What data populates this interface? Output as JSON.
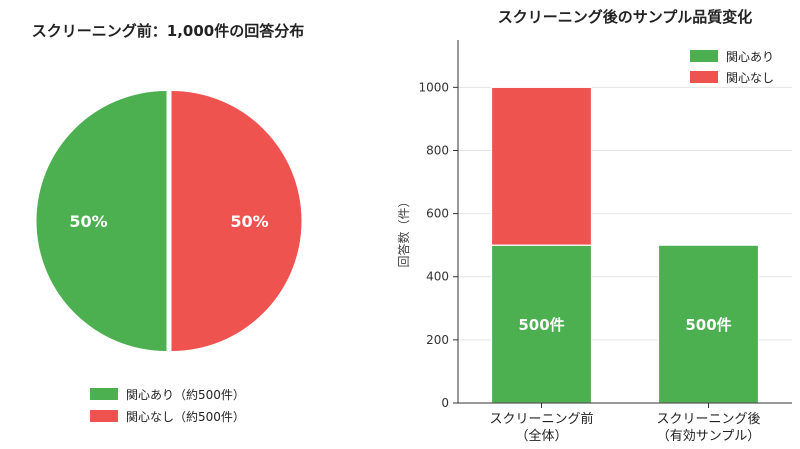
{
  "chart_data": [
    {
      "type": "pie",
      "title": "スクリーニング前：1,000件の回答分布",
      "slices": [
        {
          "label": "関心あり",
          "value": 50,
          "value_label": "50%",
          "legend": "関心あり（約500件）",
          "color": "#4caf50"
        },
        {
          "label": "関心なし",
          "value": 50,
          "value_label": "50%",
          "legend": "関心なし（約500件）",
          "color": "#ef5350"
        }
      ],
      "legend_position": "bottom"
    },
    {
      "type": "bar",
      "stacked": true,
      "title": "スクリーニング後のサンプル品質変化",
      "categories": [
        "スクリーニング前\n（全体）",
        "スクリーニング後\n（有効サンプル）"
      ],
      "series": [
        {
          "name": "関心あり",
          "values": [
            500,
            500
          ],
          "data_labels": [
            "500件",
            "500件"
          ],
          "color": "#4caf50"
        },
        {
          "name": "関心なし",
          "values": [
            500,
            0
          ],
          "color": "#ef5350"
        }
      ],
      "ylabel": "回答数（件）",
      "xlabel": "",
      "ylim": [
        0,
        1150
      ],
      "yticks": [
        0,
        200,
        400,
        600,
        800,
        1000
      ],
      "grid": "y",
      "legend_position": "top-right"
    }
  ]
}
